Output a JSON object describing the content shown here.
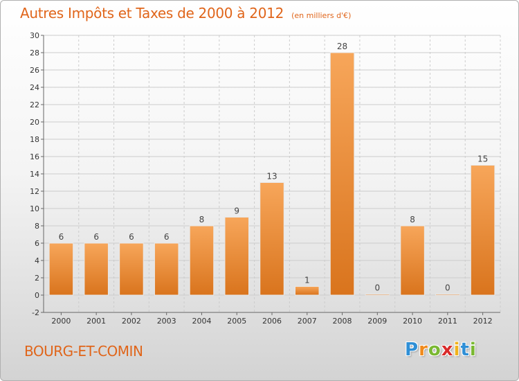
{
  "chart_data": {
    "type": "bar",
    "title": "Autres Impôts et Taxes de 2000 à 2012",
    "subtitle": "(en milliers d'€)",
    "categories": [
      "2000",
      "2001",
      "2002",
      "2003",
      "2004",
      "2005",
      "2006",
      "2007",
      "2008",
      "2009",
      "2010",
      "2011",
      "2012"
    ],
    "values": [
      6,
      6,
      6,
      6,
      8,
      9,
      13,
      1,
      28,
      0,
      8,
      0,
      15
    ],
    "value_labels": [
      "6",
      "6",
      "6",
      "6",
      "8",
      "9",
      "13",
      "1",
      "28",
      "0",
      "8",
      "0",
      "15"
    ],
    "ylim": [
      -2,
      30
    ],
    "yticks": [
      -2,
      0,
      2,
      4,
      6,
      8,
      10,
      12,
      14,
      16,
      18,
      20,
      22,
      24,
      26,
      28,
      30
    ],
    "ytick_labels": [
      "-2",
      "0",
      "2",
      "4",
      "6",
      "8",
      "10",
      "12",
      "14",
      "16",
      "18",
      "20",
      "22",
      "24",
      "26",
      "28",
      "30"
    ],
    "xlabel": "",
    "ylabel": "",
    "grid": true,
    "bar_color_light": "#f7a65a",
    "bar_color_dark": "#d9741d"
  },
  "location": "BOURG-ET-COMIN",
  "brand": {
    "letters": [
      "P",
      "r",
      "o",
      "x",
      "i",
      "t",
      "i"
    ],
    "colors": [
      "#2f8fd6",
      "#f08a1c",
      "#7ab832",
      "#d92b2b",
      "#f0b21c",
      "#2f8fd6",
      "#7ab832"
    ]
  },
  "colors": {
    "title": "#e0651a",
    "grid": "#cccccc"
  }
}
